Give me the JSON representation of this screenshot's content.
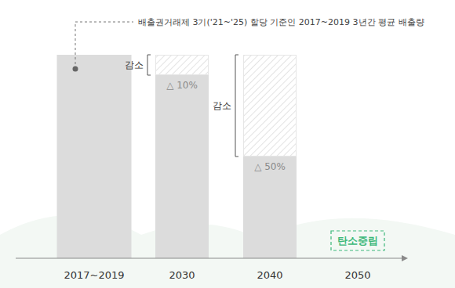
{
  "chart_data": {
    "type": "bar",
    "annotation": "배출권거래제 3기('21~'25) 할당 기준인 2017~2019 3년간 평균 배출량",
    "categories": [
      "2017~2019",
      "2030",
      "2040",
      "2050"
    ],
    "values": [
      100,
      90,
      50,
      0
    ],
    "reductions": [
      null,
      10,
      50,
      null
    ],
    "reduction_labels": [
      null,
      "△ 10%",
      "△ 50%",
      null
    ],
    "reduction_text": "감소",
    "target_label": "탄소중립",
    "color": "#dcdcdc",
    "ylim": [
      0,
      100
    ],
    "yticks": [],
    "tick_labels": "x",
    "grid": false
  }
}
